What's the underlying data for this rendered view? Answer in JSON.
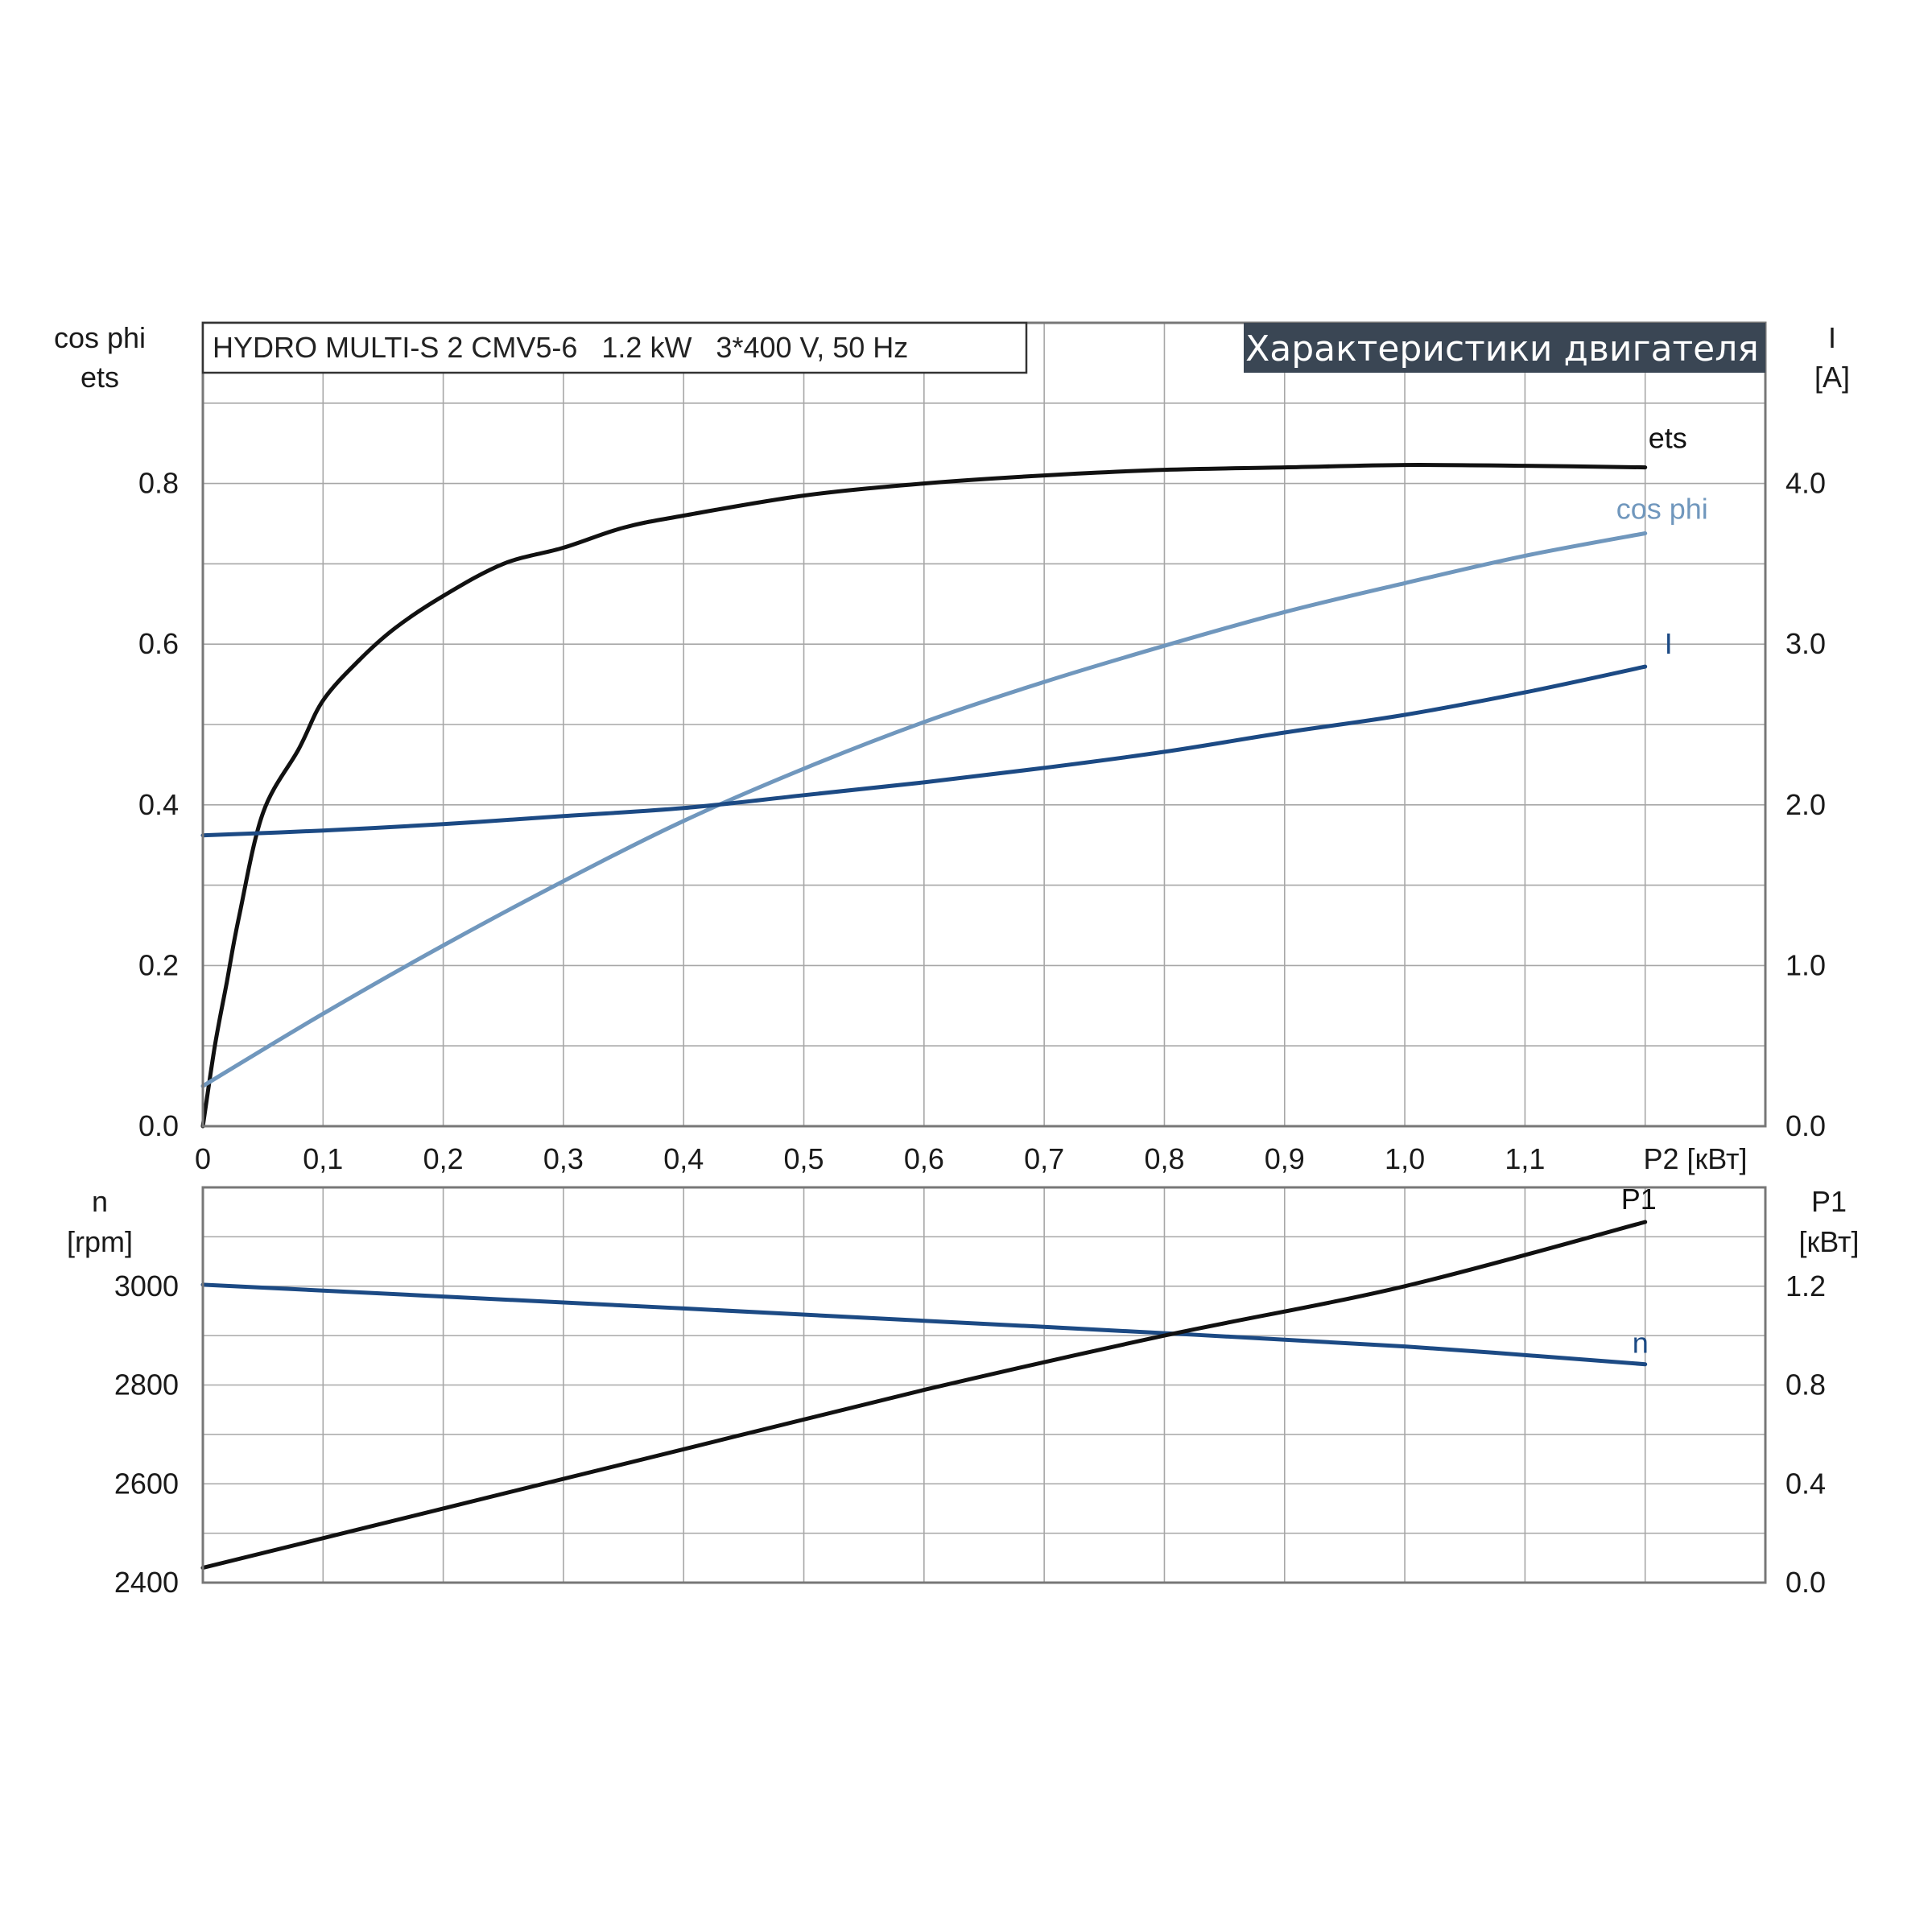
{
  "chart_title": "HYDRO MULTI-S 2 CMV5-6   1.2 kW   3*400 V, 50 Hz",
  "banner": "Характеристики двигателя",
  "colors": {
    "ets": "#111111",
    "cos_phi": "#7097bd",
    "I": "#1c4a84",
    "n": "#1c4a84",
    "P1": "#111111",
    "banner_bg": "#3a4654",
    "grid": "#a7a7a7"
  },
  "x_axis": {
    "ticks": [
      "0",
      "0,1",
      "0,2",
      "0,3",
      "0,4",
      "0,5",
      "0,6",
      "0,7",
      "0,8",
      "0,9",
      "1,0",
      "1,1"
    ],
    "label": "P2 [кВт]",
    "range": [
      0,
      1.3
    ]
  },
  "top_left_axis": {
    "label_line1": "cos phi",
    "label_line2": "ets",
    "ticks": [
      "0.0",
      "0.2",
      "0.4",
      "0.6",
      "0.8"
    ],
    "range": [
      0,
      1.0
    ]
  },
  "top_right_axis": {
    "label_line1": "I",
    "label_line2": "[A]",
    "ticks": [
      "0.0",
      "1.0",
      "2.0",
      "3.0",
      "4.0"
    ],
    "range": [
      0,
      5.0
    ]
  },
  "bottom_left_axis": {
    "label_line1": "n",
    "label_line2": "[rpm]",
    "ticks": [
      "2400",
      "2600",
      "2800",
      "3000"
    ],
    "range": [
      2400,
      3200
    ]
  },
  "bottom_right_axis": {
    "label_line1": "P1",
    "label_line2": "[кВт]",
    "ticks": [
      "0.0",
      "0.4",
      "0.8",
      "1.2"
    ],
    "range": [
      0,
      1.6
    ]
  },
  "chart_data": [
    {
      "type": "line",
      "title": "HYDRO MULTI-S 2 CMV5-6   1.2 kW   3*400 V, 50 Hz",
      "xlabel": "P2 [кВт]",
      "ylabel": "cos phi / ets",
      "y2label": "I [A]",
      "xlim": [
        0,
        1.3
      ],
      "ylim": [
        0,
        1.0
      ],
      "y2lim": [
        0,
        5.0
      ],
      "grid": true,
      "series": [
        {
          "name": "ets",
          "axis": "left",
          "x": [
            0,
            0.01,
            0.02,
            0.03,
            0.05,
            0.08,
            0.1,
            0.13,
            0.16,
            0.2,
            0.25,
            0.3,
            0.35,
            0.4,
            0.5,
            0.6,
            0.7,
            0.8,
            0.9,
            1.0,
            1.1,
            1.2
          ],
          "y": [
            0.0,
            0.1,
            0.18,
            0.26,
            0.39,
            0.47,
            0.53,
            0.58,
            0.62,
            0.66,
            0.7,
            0.72,
            0.745,
            0.76,
            0.785,
            0.8,
            0.81,
            0.817,
            0.82,
            0.823,
            0.822,
            0.82
          ]
        },
        {
          "name": "cos phi",
          "axis": "left",
          "x": [
            0,
            0.1,
            0.2,
            0.3,
            0.4,
            0.5,
            0.6,
            0.7,
            0.8,
            0.9,
            1.0,
            1.1,
            1.2
          ],
          "y": [
            0.05,
            0.14,
            0.225,
            0.305,
            0.38,
            0.445,
            0.503,
            0.553,
            0.598,
            0.64,
            0.676,
            0.71,
            0.738
          ]
        },
        {
          "name": "I",
          "axis": "right",
          "x": [
            0,
            0.1,
            0.2,
            0.3,
            0.4,
            0.5,
            0.6,
            0.7,
            0.8,
            0.9,
            1.0,
            1.1,
            1.2
          ],
          "y": [
            1.81,
            1.84,
            1.88,
            1.93,
            1.98,
            2.06,
            2.14,
            2.23,
            2.33,
            2.45,
            2.56,
            2.7,
            2.86
          ]
        }
      ]
    },
    {
      "type": "line",
      "xlabel": "P2 [кВт]",
      "ylabel": "n [rpm]",
      "y2label": "P1 [кВт]",
      "xlim": [
        0,
        1.3
      ],
      "ylim": [
        2400,
        3200
      ],
      "y2lim": [
        0,
        1.6
      ],
      "grid": true,
      "series": [
        {
          "name": "n",
          "axis": "left",
          "x": [
            0,
            0.2,
            0.4,
            0.6,
            0.8,
            1.0,
            1.2
          ],
          "y": [
            3003,
            2979,
            2955,
            2930,
            2905,
            2878,
            2842
          ]
        },
        {
          "name": "P1",
          "axis": "right",
          "x": [
            0,
            0.2,
            0.4,
            0.6,
            0.8,
            1.0,
            1.2
          ],
          "y": [
            0.06,
            0.3,
            0.54,
            0.78,
            1.0,
            1.2,
            1.46
          ]
        }
      ]
    }
  ]
}
